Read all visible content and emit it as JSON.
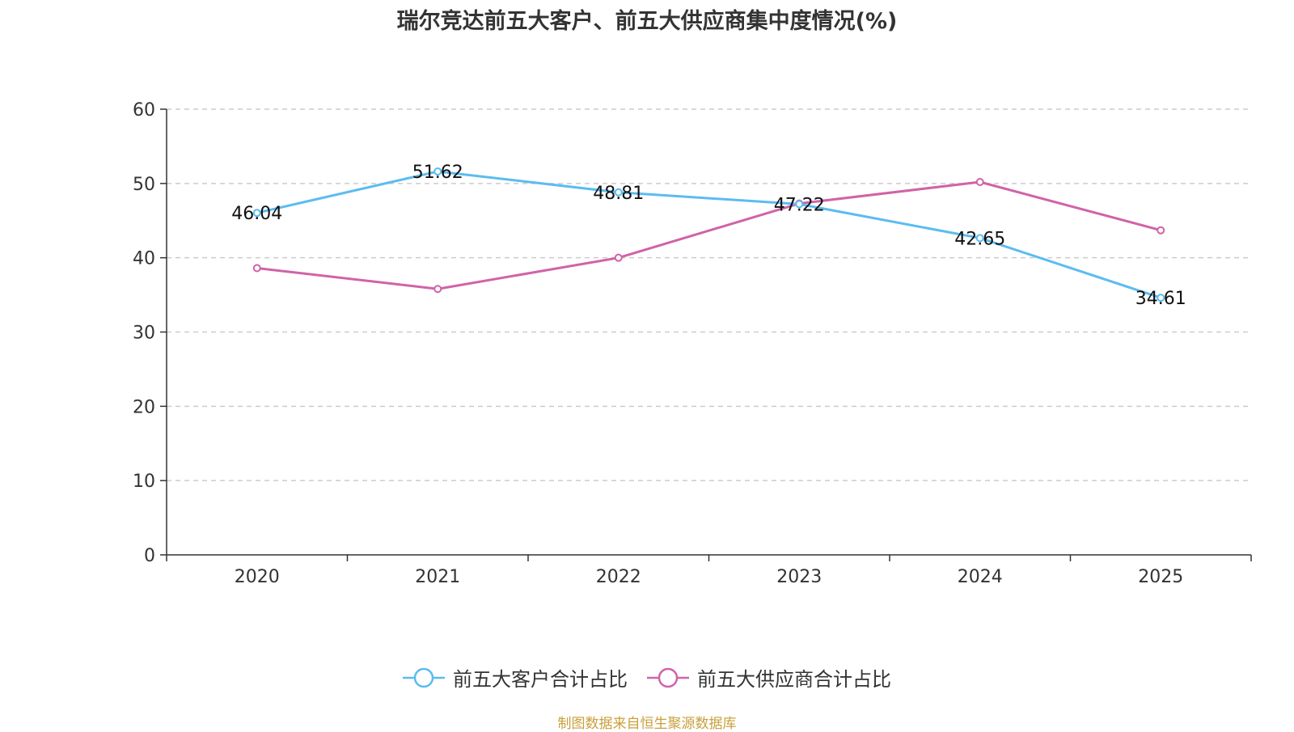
{
  "chart_data": {
    "type": "line",
    "title": "瑞尔竞达前五大客户、前五大供应商集中度情况(%)",
    "categories": [
      "2020",
      "2021",
      "2022",
      "2023",
      "2024",
      "2025"
    ],
    "ylim": [
      0,
      60
    ],
    "yticks": [
      0,
      10,
      20,
      30,
      40,
      50,
      60
    ],
    "grid": true,
    "legend_position": "bottom",
    "series": [
      {
        "name": "前五大客户合计占比",
        "color": "#5bbcf0",
        "values": [
          46.04,
          51.62,
          48.81,
          47.22,
          42.65,
          34.61
        ],
        "labels": [
          "46.04",
          "51.62",
          "48.81",
          "47.22",
          "42.65",
          "34.61"
        ]
      },
      {
        "name": "前五大供应商合计占比",
        "color": "#d063a8",
        "values": [
          38.6,
          35.8,
          40.0,
          47.3,
          50.2,
          43.7
        ],
        "labels": []
      }
    ]
  },
  "source": {
    "text": "制图数据来自恒生聚源数据库",
    "color": "#c9a03c"
  }
}
